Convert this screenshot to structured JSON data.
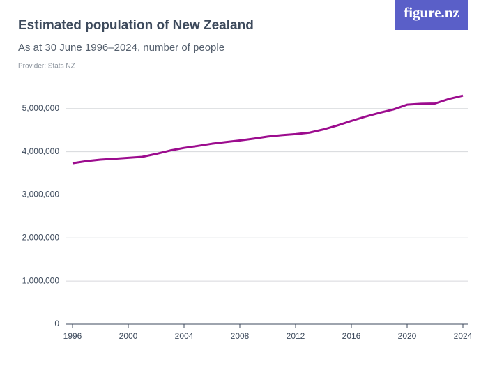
{
  "logo": "figure.nz",
  "chart_data": {
    "type": "line",
    "title": "Estimated population of New Zealand",
    "subtitle": "As at 30 June 1996–2024, number of people",
    "provider": "Provider: Stats NZ",
    "x": [
      1996,
      1997,
      1998,
      1999,
      2000,
      2001,
      2002,
      2003,
      2004,
      2005,
      2006,
      2007,
      2008,
      2009,
      2010,
      2011,
      2012,
      2013,
      2014,
      2015,
      2016,
      2017,
      2018,
      2019,
      2020,
      2021,
      2022,
      2023,
      2024
    ],
    "series": [
      {
        "name": "Estimated population",
        "color": "#9c0c8e",
        "values": [
          3732000,
          3781300,
          3815000,
          3835100,
          3857700,
          3880500,
          3948500,
          4027200,
          4087500,
          4133900,
          4184600,
          4223800,
          4259800,
          4302600,
          4350700,
          4384000,
          4408100,
          4442100,
          4516500,
          4609400,
          4714100,
          4813600,
          4900600,
          4979200,
          5090200,
          5111300,
          5117100,
          5223100,
          5300000
        ]
      }
    ],
    "xlim": [
      1996,
      2024
    ],
    "xticks": [
      1996,
      2000,
      2004,
      2008,
      2012,
      2016,
      2020,
      2024
    ],
    "ylim": [
      0,
      5400000
    ],
    "yticks": [
      0,
      {
        "value": 1000000,
        "label": "1,000,000"
      },
      {
        "value": 2000000,
        "label": "2,000,000"
      },
      {
        "value": 3000000,
        "label": "3,000,000"
      },
      {
        "value": 4000000,
        "label": "4,000,000"
      },
      {
        "value": 5000000,
        "label": "5,000,000"
      }
    ],
    "grid": true
  }
}
